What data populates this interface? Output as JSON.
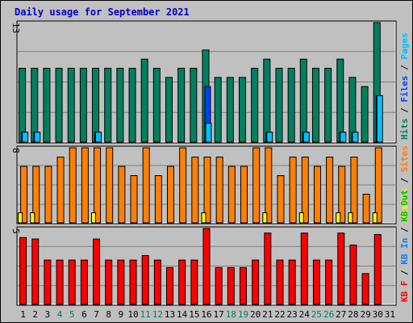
{
  "title": "Daily usage for September 2021",
  "chart_data": [
    {
      "type": "bar",
      "name": "pages-files-hits",
      "ymax": 13,
      "ymax_label": "13",
      "categories": [
        "1",
        "2",
        "3",
        "4",
        "5",
        "6",
        "7",
        "8",
        "9",
        "10",
        "11",
        "12",
        "13",
        "14",
        "15",
        "16",
        "17",
        "18",
        "19",
        "20",
        "21",
        "22",
        "23",
        "24",
        "25",
        "26",
        "27",
        "28",
        "29",
        "30",
        "31"
      ],
      "series": [
        {
          "name": "Hits",
          "color": "#008060",
          "values": [
            8,
            8,
            8,
            8,
            8,
            8,
            8,
            8,
            8,
            8,
            9,
            8,
            7,
            8,
            8,
            10,
            7,
            7,
            7,
            8,
            9,
            8,
            8,
            9,
            8,
            8,
            9,
            7,
            6,
            13,
            0
          ]
        },
        {
          "name": "Files",
          "color": "#0040ff",
          "values": [
            1,
            1,
            0,
            0,
            0,
            0,
            1,
            0,
            0,
            0,
            0,
            0,
            0,
            0,
            0,
            6,
            0,
            0,
            0,
            0,
            1,
            0,
            0,
            1,
            0,
            0,
            1,
            1,
            0,
            5,
            0
          ]
        },
        {
          "name": "Pages",
          "color": "#00c0ff",
          "values": [
            1,
            1,
            0,
            0,
            0,
            0,
            1,
            0,
            0,
            0,
            0,
            0,
            0,
            0,
            0,
            2,
            0,
            0,
            0,
            0,
            1,
            0,
            0,
            1,
            0,
            0,
            1,
            1,
            0,
            5,
            0
          ]
        }
      ],
      "legend": [
        {
          "text": "Hits",
          "color": "#008060"
        },
        {
          "text": "/",
          "color": "#000000"
        },
        {
          "text": "Files",
          "color": "#0040ff"
        },
        {
          "text": "/",
          "color": "#000000"
        },
        {
          "text": "Pages",
          "color": "#00c0ff"
        }
      ]
    },
    {
      "type": "bar",
      "name": "visits-sites",
      "ymax": 8,
      "ymax_label": "8",
      "series": [
        {
          "name": "Sites",
          "color": "#ff8000",
          "values": [
            6,
            6,
            6,
            7,
            8,
            8,
            8,
            8,
            6,
            5,
            8,
            5,
            6,
            8,
            7,
            7,
            7,
            6,
            6,
            8,
            8,
            5,
            7,
            7,
            6,
            7,
            6,
            7,
            3,
            8,
            0
          ]
        },
        {
          "name": "Visits",
          "color": "#ffff00",
          "values": [
            1,
            1,
            0,
            0,
            0,
            0,
            1,
            0,
            0,
            0,
            0,
            0,
            0,
            0,
            0,
            1,
            0,
            0,
            0,
            0,
            1,
            0,
            0,
            1,
            0,
            0,
            1,
            1,
            0,
            1,
            0
          ]
        }
      ],
      "legend": [
        {
          "text": "Visits",
          "color": "#ffff00"
        },
        {
          "text": "/",
          "color": "#000000"
        },
        {
          "text": "Sites",
          "color": "#ff8000"
        }
      ]
    },
    {
      "type": "bar",
      "name": "kbytes",
      "ymax": 5,
      "ymax_label": "5",
      "series": [
        {
          "name": "KB F",
          "color": "#ff0000",
          "values": [
            4.4,
            4.3,
            2.9,
            2.9,
            2.9,
            2.9,
            4.3,
            2.9,
            2.9,
            2.9,
            3.2,
            2.9,
            2.4,
            2.9,
            2.9,
            5,
            2.4,
            2.4,
            2.4,
            2.9,
            4.7,
            2.9,
            2.9,
            4.7,
            2.9,
            2.9,
            4.7,
            3.9,
            2,
            4.6,
            0
          ]
        }
      ],
      "legend": [
        {
          "text": "KB F",
          "color": "#ff0000"
        },
        {
          "text": "/",
          "color": "#000000"
        },
        {
          "text": "KB In",
          "color": "#0080ff"
        },
        {
          "text": "/",
          "color": "#000000"
        },
        {
          "text": "KB Out",
          "color": "#00c000"
        }
      ]
    }
  ],
  "day_colors": {
    "weekday": "#000000",
    "weekend": "#00805a"
  },
  "weekend_days": [
    4,
    5,
    11,
    12,
    18,
    19,
    25,
    26
  ]
}
